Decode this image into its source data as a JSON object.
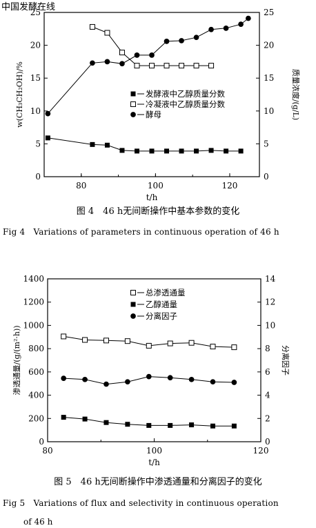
{
  "watermark": "中国发酵在线",
  "chart_data": [
    {
      "type": "scatter",
      "caption_cn": "图 4　46 h无间断操作中基本参数的变化",
      "caption_en": "Fig 4　Variations of parameters in continuous operation of 46 h",
      "xlabel": "t/h",
      "ylabel_left": "w(CH₃CH₂OH)/%",
      "ylabel_right": "质量浓度/(g/L)",
      "xlim": [
        70,
        128
      ],
      "ylim_left": [
        0,
        25
      ],
      "ylim_right": [
        0,
        25
      ],
      "xticks": [
        "80",
        "100",
        "120"
      ],
      "yticks_left": [
        "0",
        "5",
        "10",
        "15",
        "20",
        "25"
      ],
      "yticks_right": [
        "0",
        "5",
        "10",
        "15",
        "20",
        "25"
      ],
      "legend_position": "center-right",
      "series": [
        {
          "name": "发酵液中乙醇质量分数",
          "marker": "square-filled",
          "axis": "left",
          "x": [
            71,
            83,
            87,
            91,
            95,
            99,
            103,
            107,
            111,
            115,
            119,
            123
          ],
          "y": [
            5.9,
            4.9,
            4.8,
            4.0,
            3.9,
            3.9,
            3.9,
            3.9,
            3.9,
            4.0,
            3.9,
            3.9
          ]
        },
        {
          "name": "冷凝液中乙醇质量分数",
          "marker": "square-open",
          "axis": "left",
          "x": [
            83,
            87,
            91,
            95,
            99,
            103,
            107,
            111,
            115
          ],
          "y": [
            22.8,
            21.9,
            18.9,
            16.9,
            16.9,
            16.9,
            16.9,
            16.9,
            16.9
          ]
        },
        {
          "name": "酵母",
          "marker": "circle-filled",
          "axis": "right",
          "x": [
            71,
            83,
            87,
            91,
            95,
            99,
            103,
            107,
            111,
            115,
            119,
            123,
            125
          ],
          "y": [
            9.6,
            17.3,
            17.5,
            17.2,
            18.5,
            18.5,
            20.6,
            20.7,
            21.2,
            22.4,
            22.6,
            23.2,
            24.1
          ]
        }
      ]
    },
    {
      "type": "scatter",
      "caption_cn": "图 5　46 h无间断操作中渗透通量和分离因子的变化",
      "caption_en_line1": "Fig 5　Variations of flux and selectivity in continuous operation",
      "caption_en_line2": "of 46 h",
      "xlabel": "t/h",
      "ylabel_left": "渗透通量/(g/(m²·h))",
      "ylabel_right": "分离因子",
      "xlim": [
        80,
        120
      ],
      "ylim_left": [
        0,
        1400
      ],
      "ylim_right": [
        0,
        14
      ],
      "xticks": [
        "80",
        "100",
        "120"
      ],
      "yticks_left": [
        "0",
        "200",
        "400",
        "600",
        "800",
        "1000",
        "1200",
        "1400"
      ],
      "yticks_right": [
        "0",
        "2",
        "4",
        "6",
        "8",
        "10",
        "12",
        "14"
      ],
      "legend_position": "top-center",
      "series": [
        {
          "name": "总渗透通量",
          "marker": "square-open",
          "axis": "left",
          "x": [
            83,
            87,
            91,
            95,
            99,
            103,
            107,
            111,
            115
          ],
          "y": [
            905,
            875,
            870,
            865,
            825,
            845,
            850,
            818,
            812
          ]
        },
        {
          "name": "乙醇通量",
          "marker": "square-filled",
          "axis": "left",
          "x": [
            83,
            87,
            91,
            95,
            99,
            103,
            107,
            111,
            115
          ],
          "y": [
            210,
            195,
            165,
            150,
            140,
            140,
            145,
            135,
            135
          ]
        },
        {
          "name": "分离因子",
          "marker": "circle-filled",
          "axis": "right",
          "x": [
            83,
            87,
            91,
            95,
            99,
            103,
            107,
            111,
            115
          ],
          "y": [
            5.45,
            5.35,
            4.95,
            5.15,
            5.6,
            5.5,
            5.35,
            5.15,
            5.1
          ]
        }
      ]
    }
  ]
}
